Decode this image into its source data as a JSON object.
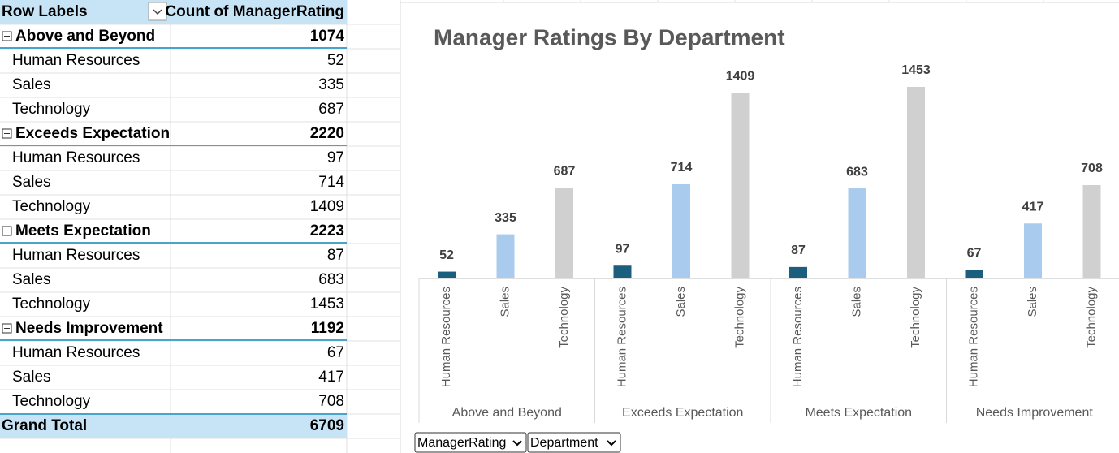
{
  "pivot_table": {
    "header": [
      "Row Labels",
      "Count of ManagerRating"
    ],
    "groups": [
      {
        "label": "Above and Beyond",
        "total": 1074,
        "rows": [
          {
            "label": "Human Resources",
            "value": 52
          },
          {
            "label": "Sales",
            "value": 335
          },
          {
            "label": "Technology",
            "value": 687
          }
        ]
      },
      {
        "label": "Exceeds Expectation",
        "total": 2220,
        "rows": [
          {
            "label": "Human Resources",
            "value": 97
          },
          {
            "label": "Sales",
            "value": 714
          },
          {
            "label": "Technology",
            "value": 1409
          }
        ]
      },
      {
        "label": "Meets Expectation",
        "total": 2223,
        "rows": [
          {
            "label": "Human Resources",
            "value": 87
          },
          {
            "label": "Sales",
            "value": 683
          },
          {
            "label": "Technology",
            "value": 1453
          }
        ]
      },
      {
        "label": "Needs Improvement",
        "total": 1192,
        "rows": [
          {
            "label": "Human Resources",
            "value": 67
          },
          {
            "label": "Sales",
            "value": 417
          },
          {
            "label": "Technology",
            "value": 708
          }
        ]
      }
    ],
    "grand_total": {
      "label": "Grand Total",
      "value": 6709
    }
  },
  "chart_data": {
    "type": "bar",
    "title": "Manager Ratings By Department",
    "categories": [
      "Above and Beyond",
      "Exceeds Expectation",
      "Meets Expectation",
      "Needs Improvement"
    ],
    "series": [
      {
        "name": "Human Resources",
        "color": "#1b5e7e",
        "values": [
          52,
          97,
          87,
          67
        ]
      },
      {
        "name": "Sales",
        "color": "#a8cbee",
        "values": [
          335,
          714,
          683,
          417
        ]
      },
      {
        "name": "Technology",
        "color": "#d0d0d0",
        "values": [
          687,
          1409,
          1453,
          708
        ]
      }
    ],
    "legend": false,
    "grid": false
  },
  "filters": [
    "ManagerRating",
    "Department"
  ]
}
